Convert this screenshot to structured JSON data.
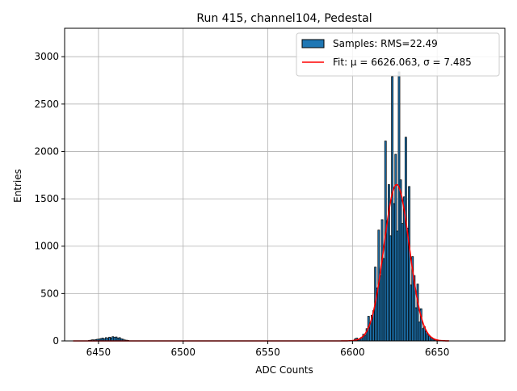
{
  "chart_data": {
    "type": "bar",
    "title": "Run 415, channel104, Pedestal",
    "xlabel": "ADC Counts",
    "ylabel": "Entries",
    "xlim": [
      6430,
      6690
    ],
    "ylim": [
      0,
      3300
    ],
    "xticks": [
      6450,
      6500,
      6550,
      6600,
      6650
    ],
    "yticks": [
      0,
      500,
      1000,
      1500,
      2000,
      2500,
      3000
    ],
    "grid": true,
    "legend_position": "top-right",
    "colors": {
      "bar_fill": "#1f77b4",
      "bar_edge": "#000000",
      "fit_line": "#ff0000",
      "grid": "#b0b0b0"
    },
    "histogram": {
      "name": "Samples: RMS=22.49",
      "bin_width": 1,
      "bins": [
        [
          6444,
          5
        ],
        [
          6445,
          8
        ],
        [
          6446,
          12
        ],
        [
          6447,
          10
        ],
        [
          6448,
          15
        ],
        [
          6449,
          18
        ],
        [
          6450,
          20
        ],
        [
          6451,
          25
        ],
        [
          6452,
          30
        ],
        [
          6453,
          22
        ],
        [
          6454,
          35
        ],
        [
          6455,
          28
        ],
        [
          6456,
          40
        ],
        [
          6457,
          33
        ],
        [
          6458,
          45
        ],
        [
          6459,
          38
        ],
        [
          6460,
          42
        ],
        [
          6461,
          30
        ],
        [
          6462,
          35
        ],
        [
          6463,
          22
        ],
        [
          6464,
          18
        ],
        [
          6465,
          10
        ],
        [
          6466,
          8
        ],
        [
          6467,
          5
        ],
        [
          6601,
          20
        ],
        [
          6602,
          30
        ],
        [
          6603,
          10
        ],
        [
          6604,
          25
        ],
        [
          6605,
          40
        ],
        [
          6606,
          70
        ],
        [
          6607,
          60
        ],
        [
          6608,
          130
        ],
        [
          6609,
          260
        ],
        [
          6610,
          180
        ],
        [
          6611,
          270
        ],
        [
          6612,
          320
        ],
        [
          6613,
          780
        ],
        [
          6614,
          560
        ],
        [
          6615,
          1170
        ],
        [
          6616,
          690
        ],
        [
          6617,
          1280
        ],
        [
          6618,
          870
        ],
        [
          6619,
          2110
        ],
        [
          6620,
          1270
        ],
        [
          6621,
          1650
        ],
        [
          6622,
          1110
        ],
        [
          6623,
          2790
        ],
        [
          6624,
          1450
        ],
        [
          6625,
          1970
        ],
        [
          6626,
          1160
        ],
        [
          6627,
          2840
        ],
        [
          6628,
          1700
        ],
        [
          6629,
          1240
        ],
        [
          6630,
          1520
        ],
        [
          6631,
          2150
        ],
        [
          6632,
          1190
        ],
        [
          6633,
          1630
        ],
        [
          6634,
          590
        ],
        [
          6635,
          890
        ],
        [
          6636,
          690
        ],
        [
          6637,
          350
        ],
        [
          6638,
          600
        ],
        [
          6639,
          200
        ],
        [
          6640,
          340
        ],
        [
          6641,
          130
        ],
        [
          6642,
          150
        ],
        [
          6643,
          100
        ],
        [
          6644,
          70
        ],
        [
          6645,
          50
        ],
        [
          6646,
          40
        ],
        [
          6647,
          20
        ],
        [
          6648,
          10
        ]
      ]
    },
    "fit": {
      "name": "Fit: μ = 6626.063, σ = 7.485",
      "mu": 6626.063,
      "sigma": 7.485,
      "amplitude": 1650,
      "x_range": [
        6435,
        6657
      ]
    }
  }
}
